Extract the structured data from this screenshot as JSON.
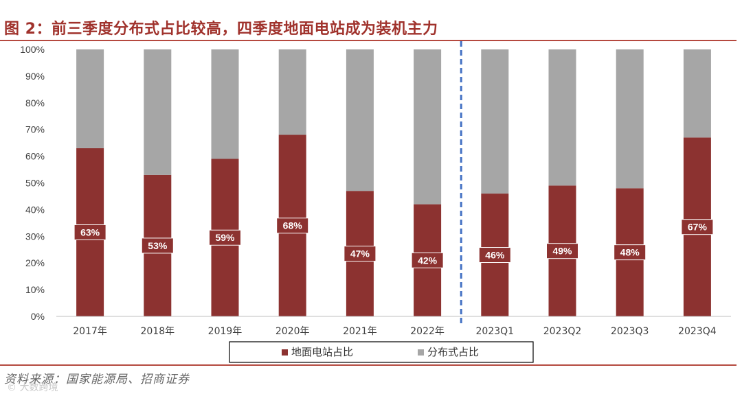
{
  "header": {
    "title": "图 2：前三季度分布式占比较高，四季度地面电站成为装机主力"
  },
  "footer": {
    "source": "资料来源：国家能源局、招商证券",
    "watermark": "© 大数跨境"
  },
  "colors": {
    "ground": "#8c3230",
    "distributed": "#a6a6a6",
    "divider": "#4472c4",
    "accent": "#a0322c"
  },
  "chart_data": {
    "type": "bar",
    "stacked": true,
    "categories": [
      "2017年",
      "2018年",
      "2019年",
      "2020年",
      "2021年",
      "2022年",
      "2023Q1",
      "2023Q2",
      "2023Q3",
      "2023Q4"
    ],
    "series": [
      {
        "name": "地面电站占比",
        "values": [
          63,
          53,
          59,
          68,
          47,
          42,
          46,
          49,
          48,
          67
        ],
        "color": "#8c3230"
      },
      {
        "name": "分布式占比",
        "values": [
          37,
          47,
          41,
          32,
          53,
          58,
          54,
          51,
          52,
          33
        ],
        "color": "#a6a6a6"
      }
    ],
    "data_labels": [
      "63%",
      "53%",
      "59%",
      "68%",
      "47%",
      "42%",
      "46%",
      "49%",
      "48%",
      "67%"
    ],
    "ylim": [
      0,
      100
    ],
    "yticks": [
      "0%",
      "10%",
      "20%",
      "30%",
      "40%",
      "50%",
      "60%",
      "70%",
      "80%",
      "90%",
      "100%"
    ],
    "divider_after_index": 5,
    "grid": false,
    "legend_position": "bottom"
  }
}
